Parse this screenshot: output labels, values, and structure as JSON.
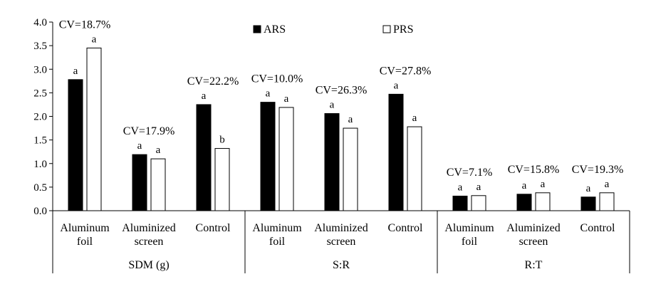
{
  "chart_data": {
    "type": "bar",
    "ylim": [
      0,
      4.0
    ],
    "yticks": [
      "0.0",
      "0.5",
      "1.0",
      "1.5",
      "2.0",
      "2.5",
      "3.0",
      "3.5",
      "4.0"
    ],
    "grid": false,
    "legend_position": "top-center",
    "series": [
      {
        "name": "ARS",
        "color": "#000000",
        "outline": "#000000"
      },
      {
        "name": "PRS",
        "color": "#ffffff",
        "outline": "#000000"
      }
    ],
    "groups": [
      {
        "label": "SDM (g)",
        "categories": [
          {
            "lines": [
              "Aluminum",
              "foil"
            ],
            "cv": "CV=18.7%",
            "values": [
              2.78,
              3.45
            ],
            "letters": [
              "a",
              "a"
            ]
          },
          {
            "lines": [
              "Aluminized",
              "screen"
            ],
            "cv": "CV=17.9%",
            "values": [
              1.19,
              1.1
            ],
            "letters": [
              "a",
              "a"
            ]
          },
          {
            "lines": [
              "Control"
            ],
            "cv": "CV=22.2%",
            "values": [
              2.25,
              1.32
            ],
            "letters": [
              "a",
              "b"
            ]
          }
        ]
      },
      {
        "label": "S:R",
        "categories": [
          {
            "lines": [
              "Aluminum",
              "foil"
            ],
            "cv": "CV=10.0%",
            "values": [
              2.3,
              2.19
            ],
            "letters": [
              "a",
              "a"
            ]
          },
          {
            "lines": [
              "Aluminized",
              "screen"
            ],
            "cv": "CV=26.3%",
            "values": [
              2.06,
              1.75
            ],
            "letters": [
              "a",
              "a"
            ]
          },
          {
            "lines": [
              "Control"
            ],
            "cv": "CV=27.8%",
            "values": [
              2.47,
              1.78
            ],
            "letters": [
              "a",
              "a"
            ]
          }
        ]
      },
      {
        "label": "R:T",
        "categories": [
          {
            "lines": [
              "Aluminum",
              "foil"
            ],
            "cv": "CV=7.1%",
            "values": [
              0.31,
              0.32
            ],
            "letters": [
              "a",
              "a"
            ]
          },
          {
            "lines": [
              "Aluminized",
              "screen"
            ],
            "cv": "CV=15.8%",
            "values": [
              0.35,
              0.38
            ],
            "letters": [
              "a",
              "a"
            ]
          },
          {
            "lines": [
              "Control"
            ],
            "cv": "CV=19.3%",
            "values": [
              0.29,
              0.38
            ],
            "letters": [
              "a",
              "a"
            ]
          }
        ]
      }
    ]
  }
}
